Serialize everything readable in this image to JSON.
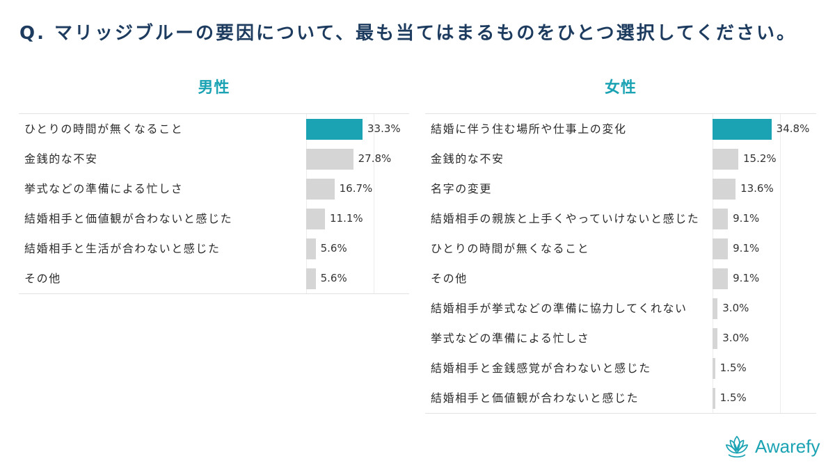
{
  "title": "Q. マリッジブルーの要因について、最も当てはまるものをひとつ選択してください。",
  "colors": {
    "title": "#1d3b5e",
    "accent": "#1ba3b4",
    "bar": "#d5d5d5",
    "text": "#333333"
  },
  "logo": {
    "name": "Awarefy",
    "icon": "lotus-icon"
  },
  "chart_data": [
    {
      "type": "bar",
      "orientation": "horizontal",
      "title": "男性",
      "categories": [
        "ひとりの時間が無くなること",
        "金銭的な不安",
        "挙式などの準備による忙しさ",
        "結婚相手と価値観が合わないと感じた",
        "結婚相手と生活が合わないと感じた",
        "その他"
      ],
      "values": [
        33.3,
        27.8,
        16.7,
        11.1,
        5.6,
        5.6
      ],
      "value_labels": [
        "33.3%",
        "27.8%",
        "16.7%",
        "11.1%",
        "5.6%",
        "5.6%"
      ],
      "highlight_index": 0,
      "xlim": [
        0,
        60
      ],
      "grid": true,
      "legend": "none"
    },
    {
      "type": "bar",
      "orientation": "horizontal",
      "title": "女性",
      "categories": [
        "結婚に伴う住む場所や仕事上の変化",
        "金銭的な不安",
        "名字の変更",
        "結婚相手の親族と上手くやっていけないと感じた",
        "ひとりの時間が無くなること",
        "その他",
        "結婚相手が挙式などの準備に協力してくれない",
        "挙式などの準備による忙しさ",
        "結婚相手と金銭感覚が合わないと感じた",
        "結婚相手と価値観が合わないと感じた"
      ],
      "values": [
        34.8,
        15.2,
        13.6,
        9.1,
        9.1,
        9.1,
        3.0,
        3.0,
        1.5,
        1.5
      ],
      "value_labels": [
        "34.8%",
        "15.2%",
        "13.6%",
        "9.1%",
        "9.1%",
        "9.1%",
        "3.0%",
        "3.0%",
        "1.5%",
        "1.5%"
      ],
      "highlight_index": 0,
      "xlim": [
        0,
        60
      ],
      "grid": true,
      "legend": "none"
    }
  ]
}
